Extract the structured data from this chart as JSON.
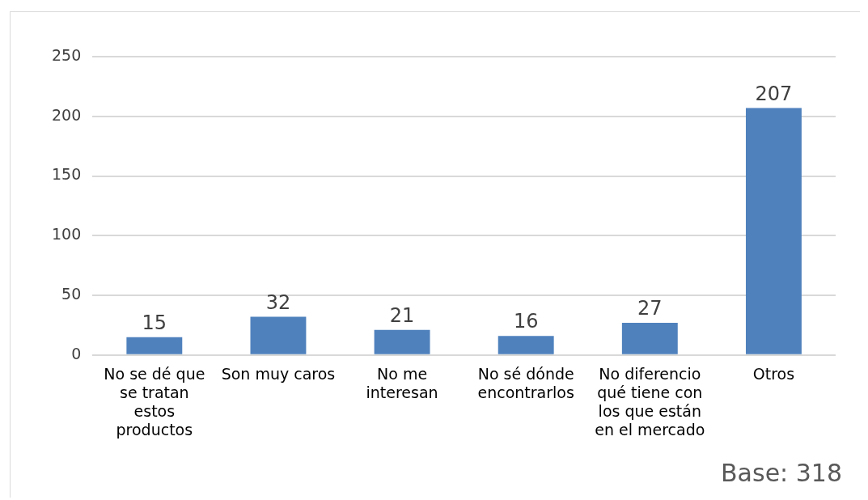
{
  "chart_data": {
    "type": "bar",
    "categories": [
      "No se dé que se tratan estos productos",
      "Son muy caros",
      "No me interesan",
      "No sé dónde encontrarlos",
      "No diferencio qué tiene con los que están en el mercado",
      "Otros"
    ],
    "values": [
      15,
      32,
      21,
      16,
      27,
      207
    ],
    "color": "#4f81bd",
    "ylim": [
      0,
      250
    ],
    "yticks": [
      0,
      50,
      100,
      150,
      200,
      250
    ],
    "grid": "y",
    "data_labels": true,
    "annotations": [
      "Base: 318"
    ]
  }
}
